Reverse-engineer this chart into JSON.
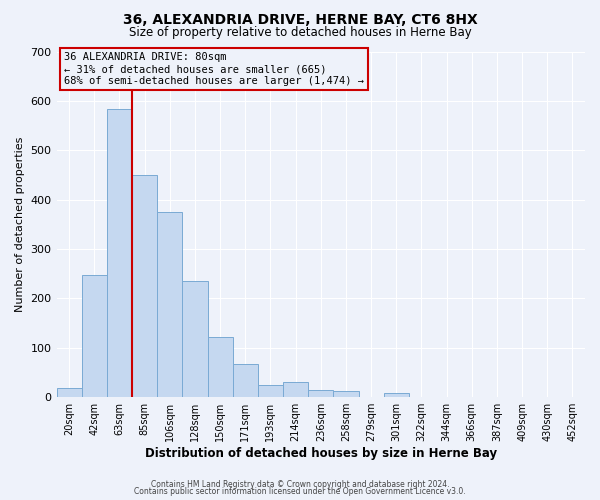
{
  "title": "36, ALEXANDRIA DRIVE, HERNE BAY, CT6 8HX",
  "subtitle": "Size of property relative to detached houses in Herne Bay",
  "xlabel": "Distribution of detached houses by size in Herne Bay",
  "ylabel": "Number of detached properties",
  "bin_labels": [
    "20sqm",
    "42sqm",
    "63sqm",
    "85sqm",
    "106sqm",
    "128sqm",
    "150sqm",
    "171sqm",
    "193sqm",
    "214sqm",
    "236sqm",
    "258sqm",
    "279sqm",
    "301sqm",
    "322sqm",
    "344sqm",
    "366sqm",
    "387sqm",
    "409sqm",
    "430sqm",
    "452sqm"
  ],
  "bar_values": [
    18,
    247,
    583,
    450,
    375,
    236,
    122,
    67,
    25,
    31,
    14,
    12,
    1,
    9,
    1,
    1,
    1,
    1,
    0,
    0,
    1
  ],
  "bar_color": "#c5d8f0",
  "bar_edge_color": "#7aaad4",
  "vline_x_index": 3,
  "vline_color": "#cc0000",
  "ylim": [
    0,
    700
  ],
  "yticks": [
    0,
    100,
    200,
    300,
    400,
    500,
    600,
    700
  ],
  "annotation_title": "36 ALEXANDRIA DRIVE: 80sqm",
  "annotation_line1": "← 31% of detached houses are smaller (665)",
  "annotation_line2": "68% of semi-detached houses are larger (1,474) →",
  "footer1": "Contains HM Land Registry data © Crown copyright and database right 2024.",
  "footer2": "Contains public sector information licensed under the Open Government Licence v3.0.",
  "background_color": "#eef2fa"
}
